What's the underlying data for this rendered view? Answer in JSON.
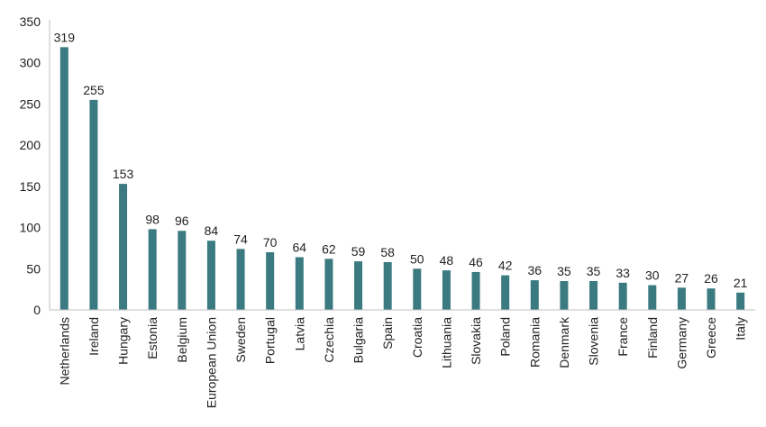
{
  "chart_data": {
    "type": "bar",
    "title": "",
    "xlabel": "",
    "ylabel": "",
    "ylim": [
      0,
      350
    ],
    "yticks": [
      0,
      50,
      100,
      150,
      200,
      250,
      300,
      350
    ],
    "grid": false,
    "legend": "none",
    "bar_color": "#3a7a80",
    "categories": [
      "Netherlands",
      "Ireland",
      "Hungary",
      "Estonia",
      "Belgium",
      "European Union",
      "Sweden",
      "Portugal",
      "Latvia",
      "Czechia",
      "Bulgaria",
      "Spain",
      "Croatia",
      "Lithuania",
      "Slovakia",
      "Poland",
      "Romania",
      "Denmark",
      "Slovenia",
      "France",
      "Finland",
      "Germany",
      "Greece",
      "Italy"
    ],
    "values": [
      319,
      255,
      153,
      98,
      96,
      84,
      74,
      70,
      64,
      62,
      59,
      58,
      50,
      48,
      46,
      42,
      36,
      35,
      35,
      33,
      30,
      27,
      26,
      21
    ]
  }
}
